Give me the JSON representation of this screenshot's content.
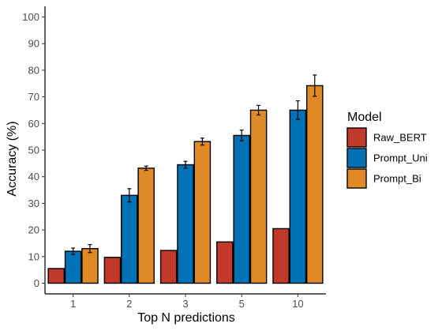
{
  "chart_data": {
    "type": "bar",
    "title": "",
    "xlabel": "Top N predictions",
    "ylabel": "Accuracy (%)",
    "ylim": [
      -4,
      104
    ],
    "yticks": [
      0,
      10,
      20,
      30,
      40,
      50,
      60,
      70,
      80,
      90,
      100
    ],
    "categories": [
      "1",
      "2",
      "3",
      "5",
      "10"
    ],
    "grid": false,
    "legend": {
      "title": "Model",
      "position": "right"
    },
    "series": [
      {
        "name": "Raw_BERT",
        "color": "#C0392B",
        "values": [
          5.5,
          9.7,
          12.3,
          15.5,
          20.5
        ],
        "errors": [
          0,
          0,
          0,
          0,
          0
        ]
      },
      {
        "name": "Prompt_Uni",
        "color": "#0072B5",
        "values": [
          12.0,
          33.0,
          44.5,
          55.5,
          65.0
        ],
        "errors": [
          1.2,
          2.5,
          1.3,
          2.0,
          3.5
        ]
      },
      {
        "name": "Prompt_Bi",
        "color": "#E08A27",
        "values": [
          13.0,
          43.2,
          53.2,
          65.0,
          74.2
        ],
        "errors": [
          1.5,
          0.8,
          1.3,
          1.8,
          4.0
        ]
      }
    ]
  }
}
